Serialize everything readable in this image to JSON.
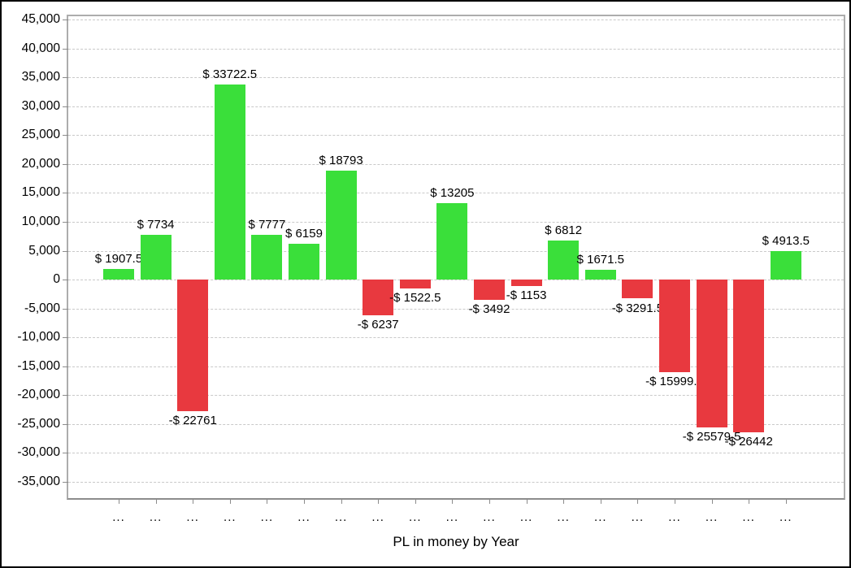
{
  "chart_data": {
    "type": "bar",
    "title": "PL in money by Year",
    "xlabel": "",
    "ylabel": "",
    "categories": [
      "...",
      "...",
      "...",
      "...",
      "...",
      "...",
      "...",
      "...",
      "...",
      "...",
      "...",
      "...",
      "...",
      "...",
      "...",
      "...",
      "...",
      "...",
      "..."
    ],
    "values": [
      1907.5,
      7734,
      -22761,
      33722.5,
      7777,
      6159,
      18793,
      -6237,
      -1522.5,
      13205,
      -3492,
      -1153,
      6812,
      1671.5,
      -3291.5,
      -15999.5,
      -25579.5,
      -26442,
      4913.5
    ],
    "value_labels": [
      "$ 1907.5",
      "$ 7734",
      "-$ 22761",
      "$ 33722.5",
      "$ 7777",
      "$ 6159",
      "$ 18793",
      "-$ 6237",
      "-$ 1522.5",
      "$ 13205",
      "-$ 3492",
      "-$ 1153",
      "$ 6812",
      "$ 1671.5",
      "-$ 3291.5",
      "-$ 15999.5",
      "-$ 25579.5",
      "-$ 26442",
      "$ 4913.5"
    ],
    "ylim": [
      -35000,
      45000
    ],
    "ytick_step": 5000,
    "yticks": [
      "45,000",
      "40,000",
      "35,000",
      "30,000",
      "25,000",
      "20,000",
      "15,000",
      "10,000",
      "5,000",
      "0",
      "-5,000",
      "-10,000",
      "-15,000",
      "-20,000",
      "-25,000",
      "-30,000",
      "-35,000"
    ],
    "ytick_values": [
      45000,
      40000,
      35000,
      30000,
      25000,
      20000,
      15000,
      10000,
      5000,
      0,
      -5000,
      -10000,
      -15000,
      -20000,
      -25000,
      -30000,
      -35000
    ],
    "grid": true,
    "legend": false,
    "colors": {
      "positive": "#3ADF3A",
      "negative": "#E8393F",
      "grid": "#C9C9C9",
      "plot_border": "#ADADAD",
      "axis_bottom": "#8C8C8C",
      "tick": "#8C8C8C",
      "text": "#000000",
      "background": "#FFFFFF",
      "frame_border": "#000000"
    }
  }
}
